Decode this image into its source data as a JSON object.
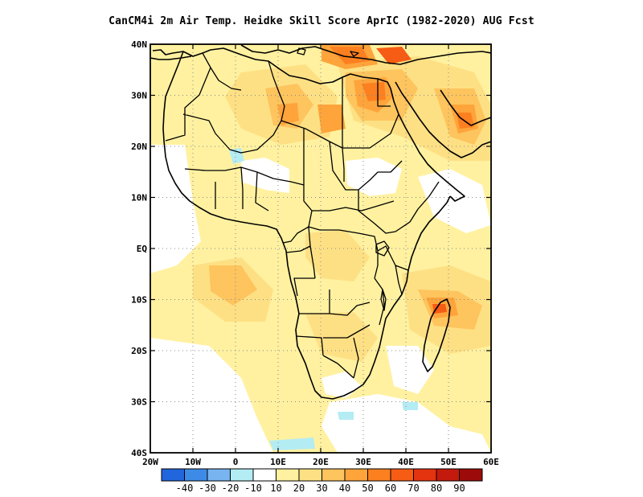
{
  "title": "CanCM4i  2m Air Temp. Heidke Skill Score AprIC (1982-2020) AUG Fcst",
  "map": {
    "lon_range": [
      -20,
      60
    ],
    "lat_range": [
      -40,
      40
    ],
    "lon_ticks": [
      {
        "value": -20,
        "label": "20W"
      },
      {
        "value": -10,
        "label": "10W"
      },
      {
        "value": 0,
        "label": "0"
      },
      {
        "value": 10,
        "label": "10E"
      },
      {
        "value": 20,
        "label": "20E"
      },
      {
        "value": 30,
        "label": "30E"
      },
      {
        "value": 40,
        "label": "40E"
      },
      {
        "value": 50,
        "label": "50E"
      },
      {
        "value": 60,
        "label": "60E"
      }
    ],
    "lat_ticks": [
      {
        "value": 40,
        "label": "40N"
      },
      {
        "value": 30,
        "label": "30N"
      },
      {
        "value": 20,
        "label": "20N"
      },
      {
        "value": 10,
        "label": "10N"
      },
      {
        "value": 0,
        "label": "EQ"
      },
      {
        "value": -10,
        "label": "10S"
      },
      {
        "value": -20,
        "label": "20S"
      },
      {
        "value": -30,
        "label": "30S"
      },
      {
        "value": -40,
        "label": "40S"
      }
    ],
    "gridlines": "dotted"
  },
  "colorbar": {
    "colors": [
      "#2266dd",
      "#3d8be6",
      "#77b4f0",
      "#b4ecf4",
      "#ffffff",
      "#fff1a0",
      "#fee084",
      "#fec45e",
      "#fea43a",
      "#fd8020",
      "#f75c14",
      "#e4330f",
      "#c41a0d",
      "#9c0b0a"
    ],
    "labels": [
      "-40",
      "-30",
      "-20",
      "-10",
      "10",
      "20",
      "30",
      "40",
      "50",
      "60",
      "70",
      "80",
      "90"
    ]
  },
  "field_colors": {
    "low": "#fff1a0",
    "mid": "#fee084",
    "high": "#fec45e",
    "hot": "#fea43a",
    "hotter": "#fd8020",
    "hottest": "#f75c14",
    "peak": "#e4330f",
    "cold": "#b4ecf4",
    "blank": "#ffffff"
  }
}
